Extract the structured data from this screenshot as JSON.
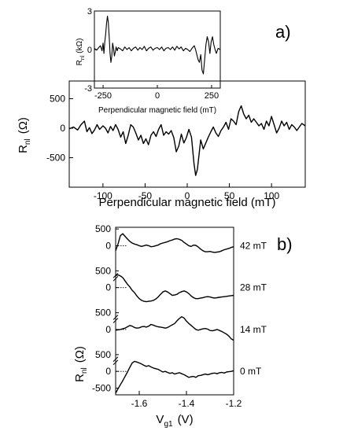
{
  "chart_data": [
    {
      "id": "main",
      "type": "line",
      "panel_label": "a)",
      "xlabel": "Perpendicular magnetic field (mT)",
      "ylabel_main": "R",
      "ylabel_sub": "nl",
      "ylabel_unit": "(Ω)",
      "xlim": [
        -140,
        140
      ],
      "ylim": [
        -1000,
        800
      ],
      "xticks": [
        -100,
        -50,
        0,
        50,
        100
      ],
      "xtick_labels": [
        "-100",
        "-50",
        "0",
        "50",
        "100"
      ],
      "yticks": [
        500,
        0,
        -500
      ],
      "ytick_labels": [
        "500",
        "0",
        "-500"
      ],
      "series": [
        {
          "x": [
            -140,
            -135,
            -130,
            -126,
            -122,
            -119,
            -116,
            -113,
            -110,
            -107,
            -104,
            -100,
            -97,
            -94,
            -91,
            -88,
            -85,
            -82,
            -79,
            -76,
            -73,
            -70,
            -67,
            -64,
            -61,
            -58,
            -55,
            -52,
            -49,
            -46,
            -43,
            -40,
            -37,
            -34,
            -31,
            -28,
            -25,
            -22,
            -19,
            -16,
            -13,
            -10,
            -7,
            -4,
            -1,
            2,
            5,
            8,
            10,
            12,
            14,
            16,
            19,
            22,
            25,
            28,
            31,
            34,
            37,
            40,
            43,
            46,
            49,
            52,
            55,
            58,
            61,
            64,
            67,
            70,
            73,
            76,
            79,
            82,
            85,
            88,
            91,
            94,
            97,
            100,
            103,
            106,
            109,
            112,
            115,
            118,
            121,
            124,
            127,
            130,
            133,
            136,
            140
          ],
          "y": [
            -10,
            20,
            -30,
            60,
            120,
            -60,
            10,
            -90,
            -30,
            60,
            -20,
            40,
            0,
            -80,
            30,
            -40,
            60,
            -20,
            -150,
            -60,
            -260,
            -120,
            60,
            20,
            -80,
            -200,
            -120,
            -260,
            -180,
            -280,
            -120,
            -60,
            -140,
            -20,
            60,
            -120,
            -60,
            -100,
            -40,
            -160,
            -400,
            -300,
            -100,
            -250,
            -160,
            -20,
            -150,
            -600,
            -800,
            -700,
            -450,
            -200,
            -350,
            -250,
            -150,
            -60,
            20,
            -80,
            -140,
            -40,
            20,
            100,
            -20,
            160,
            120,
            60,
            280,
            380,
            240,
            160,
            220,
            100,
            160,
            100,
            40,
            80,
            -20,
            120,
            40,
            200,
            60,
            -80,
            0,
            120,
            40,
            100,
            -20,
            60,
            20,
            -40,
            20,
            80,
            40
          ]
        }
      ]
    },
    {
      "id": "inset",
      "type": "line",
      "xlabel": "Perpendicular magnetic field (mT)",
      "ylabel_main": "R",
      "ylabel_sub": "nl",
      "ylabel_unit": "(kΩ)",
      "xlim": [
        -290,
        290
      ],
      "ylim": [
        -3,
        3
      ],
      "xticks": [
        -250,
        0,
        250
      ],
      "xtick_labels": [
        "-250",
        "0",
        "250"
      ],
      "yticks": [
        3,
        0,
        -3
      ],
      "ytick_labels": [
        "3",
        "0",
        "-3"
      ],
      "series": [
        {
          "x": [
            -290,
            -280,
            -270,
            -262,
            -255,
            -250,
            -246,
            -242,
            -238,
            -234,
            -230,
            -226,
            -222,
            -218,
            -214,
            -210,
            -206,
            -202,
            -198,
            -194,
            -190,
            -185,
            -180,
            -170,
            -160,
            -150,
            -140,
            -130,
            -120,
            -110,
            -100,
            -90,
            -80,
            -70,
            -60,
            -50,
            -40,
            -30,
            -20,
            -10,
            0,
            10,
            20,
            30,
            40,
            50,
            60,
            70,
            80,
            90,
            100,
            110,
            120,
            130,
            140,
            150,
            160,
            170,
            176,
            182,
            188,
            194,
            200,
            206,
            212,
            218,
            224,
            230,
            236,
            242,
            248,
            254,
            260,
            266,
            272,
            280,
            290
          ],
          "y": [
            0.1,
            -0.05,
            0.15,
            0.3,
            -0.1,
            0.5,
            -0.3,
            0.6,
            1.2,
            2.0,
            2.6,
            2.1,
            1.0,
            -0.3,
            -1.0,
            -0.5,
            0.5,
            0.1,
            -0.5,
            -0.2,
            0.2,
            -0.1,
            0.15,
            0.05,
            -0.1,
            0.2,
            0.0,
            0.15,
            -0.1,
            0.1,
            0.2,
            -0.05,
            0.15,
            0.0,
            0.25,
            -0.1,
            0.1,
            0.2,
            -0.05,
            0.1,
            0.15,
            0.0,
            0.2,
            -0.1,
            0.1,
            0.15,
            0.0,
            0.2,
            -0.05,
            0.25,
            0.05,
            0.2,
            -0.1,
            0.1,
            0.0,
            -0.15,
            0.1,
            0.3,
            0.0,
            -0.4,
            -0.8,
            -1.0,
            -0.4,
            -1.6,
            -1.9,
            -0.8,
            0.4,
            1.0,
            0.6,
            -0.3,
            0.6,
            1.0,
            0.4,
            0.0,
            -0.3,
            0.1,
            0.0
          ]
        }
      ]
    },
    {
      "id": "gate",
      "type": "line",
      "panel_label": "b)",
      "xlabel_main": "V",
      "xlabel_sub": "g1",
      "xlabel_unit": "(V)",
      "ylabel_main": "R",
      "ylabel_sub": "nl",
      "ylabel_unit": "(Ω)",
      "xlim": [
        -1.7,
        -1.2
      ],
      "xticks": [
        -1.6,
        -1.4,
        -1.2
      ],
      "xtick_labels": [
        "-1.6",
        "-1.4",
        "-1.2"
      ],
      "ylim_each": [
        -700,
        550
      ],
      "ytick_labels_stack": [
        [
          "500",
          "0"
        ],
        [
          "500",
          "0"
        ],
        [
          "500",
          "0"
        ],
        [
          "500",
          "0",
          "-500"
        ]
      ],
      "series": [
        {
          "name": "42 mT",
          "x": [
            -1.7,
            -1.69,
            -1.68,
            -1.67,
            -1.66,
            -1.65,
            -1.64,
            -1.63,
            -1.62,
            -1.61,
            -1.6,
            -1.59,
            -1.58,
            -1.57,
            -1.56,
            -1.55,
            -1.54,
            -1.53,
            -1.52,
            -1.51,
            -1.5,
            -1.49,
            -1.48,
            -1.47,
            -1.46,
            -1.45,
            -1.44,
            -1.43,
            -1.42,
            -1.41,
            -1.4,
            -1.39,
            -1.38,
            -1.37,
            -1.36,
            -1.35,
            -1.34,
            -1.33,
            -1.32,
            -1.31,
            -1.3,
            -1.29,
            -1.28,
            -1.27,
            -1.26,
            -1.25,
            -1.24,
            -1.23,
            -1.22,
            -1.21,
            -1.2
          ],
          "y": [
            -150,
            50,
            300,
            360,
            280,
            200,
            130,
            80,
            50,
            30,
            0,
            -20,
            0,
            20,
            0,
            -30,
            -20,
            0,
            20,
            60,
            80,
            100,
            120,
            150,
            170,
            200,
            210,
            190,
            160,
            100,
            50,
            0,
            -20,
            20,
            10,
            -40,
            -100,
            -150,
            -180,
            -180,
            -170,
            -190,
            -200,
            -190,
            -180,
            -150,
            -120,
            -100,
            -80,
            -50,
            -30
          ]
        },
        {
          "name": "28 mT",
          "x": [
            -1.7,
            -1.69,
            -1.68,
            -1.67,
            -1.66,
            -1.65,
            -1.64,
            -1.63,
            -1.62,
            -1.61,
            -1.6,
            -1.59,
            -1.58,
            -1.57,
            -1.56,
            -1.55,
            -1.54,
            -1.53,
            -1.52,
            -1.51,
            -1.5,
            -1.49,
            -1.48,
            -1.47,
            -1.46,
            -1.45,
            -1.44,
            -1.43,
            -1.42,
            -1.41,
            -1.4,
            -1.39,
            -1.38,
            -1.37,
            -1.36,
            -1.35,
            -1.34,
            -1.33,
            -1.32,
            -1.31,
            -1.3,
            -1.29,
            -1.28,
            -1.27,
            -1.26,
            -1.25,
            -1.24,
            -1.23,
            -1.22,
            -1.21,
            -1.2
          ],
          "y": [
            360,
            380,
            350,
            300,
            200,
            100,
            20,
            -80,
            -150,
            -250,
            -330,
            -380,
            -410,
            -420,
            -410,
            -400,
            -380,
            -340,
            -280,
            -200,
            -130,
            -100,
            -130,
            -180,
            -230,
            -220,
            -200,
            -150,
            -120,
            -100,
            -130,
            -180,
            -250,
            -300,
            -330,
            -330,
            -310,
            -300,
            -280,
            -270,
            -280,
            -300,
            -310,
            -300,
            -290,
            -280,
            -270,
            -260,
            -250,
            -240,
            -230
          ]
        },
        {
          "name": "14 mT",
          "x": [
            -1.7,
            -1.69,
            -1.68,
            -1.67,
            -1.66,
            -1.65,
            -1.64,
            -1.63,
            -1.62,
            -1.61,
            -1.6,
            -1.59,
            -1.58,
            -1.57,
            -1.56,
            -1.55,
            -1.54,
            -1.53,
            -1.52,
            -1.51,
            -1.5,
            -1.49,
            -1.48,
            -1.47,
            -1.46,
            -1.45,
            -1.44,
            -1.43,
            -1.42,
            -1.41,
            -1.4,
            -1.39,
            -1.38,
            -1.37,
            -1.36,
            -1.35,
            -1.34,
            -1.33,
            -1.32,
            -1.31,
            -1.3,
            -1.29,
            -1.28,
            -1.27,
            -1.26,
            -1.25,
            -1.24,
            -1.23,
            -1.22,
            -1.21,
            -1.2
          ],
          "y": [
            -20,
            -10,
            0,
            20,
            40,
            80,
            120,
            100,
            60,
            40,
            50,
            80,
            90,
            70,
            100,
            150,
            130,
            100,
            80,
            70,
            60,
            40,
            60,
            100,
            140,
            180,
            260,
            330,
            380,
            340,
            250,
            180,
            120,
            60,
            0,
            -20,
            0,
            20,
            30,
            10,
            -30,
            -40,
            -20,
            0,
            -30,
            -60,
            -100,
            -140,
            -200,
            -280,
            -320
          ]
        },
        {
          "name": "0 mT",
          "x": [
            -1.7,
            -1.69,
            -1.68,
            -1.67,
            -1.66,
            -1.65,
            -1.64,
            -1.63,
            -1.62,
            -1.61,
            -1.6,
            -1.59,
            -1.58,
            -1.57,
            -1.56,
            -1.55,
            -1.54,
            -1.53,
            -1.52,
            -1.51,
            -1.5,
            -1.49,
            -1.48,
            -1.47,
            -1.46,
            -1.45,
            -1.44,
            -1.43,
            -1.42,
            -1.41,
            -1.4,
            -1.39,
            -1.38,
            -1.37,
            -1.36,
            -1.35,
            -1.34,
            -1.33,
            -1.32,
            -1.31,
            -1.3,
            -1.29,
            -1.28,
            -1.27,
            -1.26,
            -1.25,
            -1.24,
            -1.23,
            -1.22,
            -1.21,
            -1.2
          ],
          "y": [
            -650,
            -520,
            -400,
            -280,
            -150,
            -20,
            120,
            250,
            300,
            280,
            250,
            220,
            180,
            150,
            170,
            130,
            100,
            80,
            60,
            20,
            -20,
            0,
            -30,
            -60,
            -40,
            -80,
            -60,
            -40,
            -70,
            -100,
            -140,
            -180,
            -160,
            -150,
            -180,
            -130,
            -120,
            -100,
            -80,
            -100,
            -80,
            -60,
            -50,
            -70,
            -40,
            -30,
            -50,
            -20,
            -10,
            0,
            20
          ]
        }
      ]
    }
  ]
}
